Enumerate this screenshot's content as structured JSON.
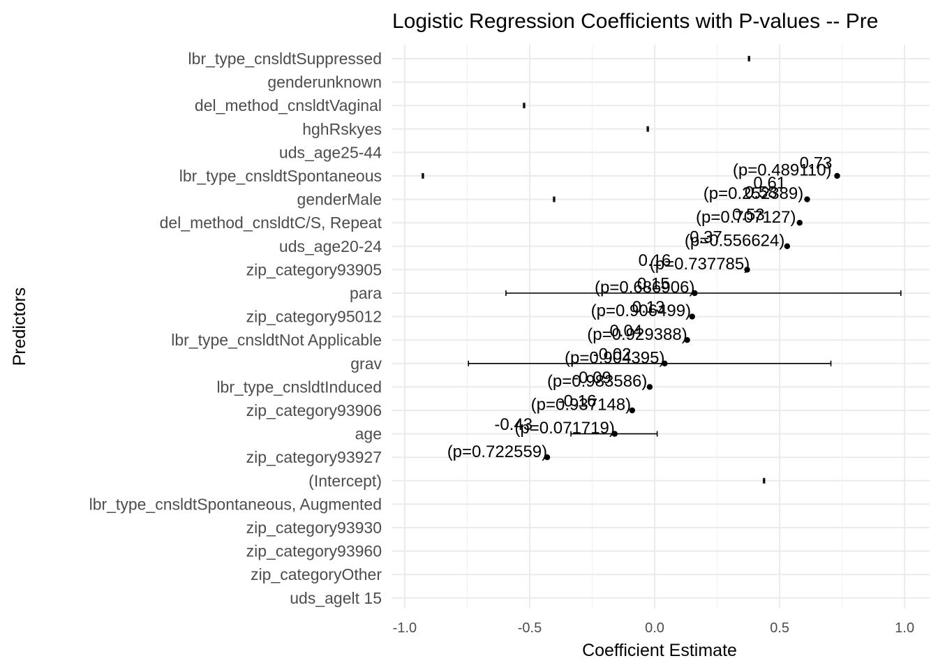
{
  "chart_data": {
    "type": "scatter",
    "title": "Logistic Regression Coefficients with P-values -- Pre",
    "xlabel": "Coefficient Estimate",
    "ylabel": "Predictors",
    "xlim": [
      -1.05,
      1.1
    ],
    "x_ticks": [
      -1.0,
      -0.5,
      0.0,
      0.5,
      1.0
    ],
    "x_tick_labels": [
      "-1.0",
      "-0.5",
      "0.0",
      "0.5",
      "1.0"
    ],
    "grid": true,
    "categories": [
      "lbr_type_cnsldtSuppressed",
      "genderunknown",
      "del_method_cnsldtVaginal",
      "hghRskyes",
      "uds_age25-44",
      "lbr_type_cnsldtSpontaneous",
      "genderMale",
      "del_method_cnsldtC/S, Repeat",
      "uds_age20-24",
      "zip_category93905",
      "para",
      "zip_category95012",
      "lbr_type_cnsldtNot Applicable",
      "grav",
      "lbr_type_cnsldtInduced",
      "zip_category93906",
      "age",
      "zip_category93927",
      "(Intercept)",
      "lbr_type_cnsldtSpontaneous, Augmented",
      "zip_category93930",
      "zip_category93960",
      "zip_categoryOther",
      "uds_agelt 15"
    ],
    "points": [
      {
        "row": 5,
        "x": 0.73
      },
      {
        "row": 6,
        "x": 0.61
      },
      {
        "row": 7,
        "x": 0.58
      },
      {
        "row": 8,
        "x": 0.53
      },
      {
        "row": 9,
        "x": 0.37
      },
      {
        "row": 10,
        "x": 0.16
      },
      {
        "row": 11,
        "x": 0.15
      },
      {
        "row": 12,
        "x": 0.13
      },
      {
        "row": 13,
        "x": 0.04
      },
      {
        "row": 14,
        "x": -0.02
      },
      {
        "row": 15,
        "x": -0.09
      },
      {
        "row": 16,
        "x": -0.16
      },
      {
        "row": 17,
        "x": -0.43
      }
    ],
    "error_bars": [
      {
        "row": 0,
        "lo": 0.375,
        "hi": 0.38
      },
      {
        "row": 2,
        "lo": -0.525,
        "hi": -0.52
      },
      {
        "row": 3,
        "lo": -0.03,
        "hi": -0.025
      },
      {
        "row": 5,
        "lo": -0.93,
        "hi": -0.925
      },
      {
        "row": 6,
        "lo": -0.405,
        "hi": -0.4
      },
      {
        "row": 10,
        "lo": -0.595,
        "hi": 0.985
      },
      {
        "row": 13,
        "lo": -0.745,
        "hi": 0.705
      },
      {
        "row": 16,
        "lo": -0.335,
        "hi": 0.01
      },
      {
        "row": 18,
        "lo": 0.435,
        "hi": 0.44
      }
    ],
    "annotations": [
      {
        "text": "0.73",
        "x": 0.645,
        "y": 4.45
      },
      {
        "text": "(p=0.489110)",
        "x": 0.51,
        "y": 4.75
      },
      {
        "text": "0.61",
        "x": 0.46,
        "y": 5.3
      },
      {
        "text": "(p=0.252389)",
        "x": 0.395,
        "y": 5.75
      },
      {
        "text": "0.58",
        "x": 0.425,
        "y": 5.7
      },
      {
        "text": "(p=0.707127)",
        "x": 0.365,
        "y": 6.75
      },
      {
        "text": "0.53",
        "x": 0.375,
        "y": 6.65
      },
      {
        "text": "(p=0.556624)",
        "x": 0.32,
        "y": 7.75
      },
      {
        "text": "0.37",
        "x": 0.205,
        "y": 7.6
      },
      {
        "text": "(p=0.737785)",
        "x": 0.18,
        "y": 8.75
      },
      {
        "text": "0.16",
        "x": 0.0,
        "y": 8.6
      },
      {
        "text": "(p=0.686906)",
        "x": -0.04,
        "y": 9.75
      },
      {
        "text": "0.15",
        "x": -0.005,
        "y": 9.6
      },
      {
        "text": "(p=0.906499)",
        "x": -0.055,
        "y": 10.75
      },
      {
        "text": "0.13",
        "x": -0.025,
        "y": 10.6
      },
      {
        "text": "(p=0.929388)",
        "x": -0.07,
        "y": 11.75
      },
      {
        "text": "0.04",
        "x": -0.115,
        "y": 11.6
      },
      {
        "text": "(p=0.904395)",
        "x": -0.16,
        "y": 12.75
      },
      {
        "text": "-0.02",
        "x": -0.17,
        "y": 12.6
      },
      {
        "text": "(p=0.983586)",
        "x": -0.23,
        "y": 13.75
      },
      {
        "text": "-0.09",
        "x": -0.25,
        "y": 13.6
      },
      {
        "text": "(p=0.937148)",
        "x": -0.295,
        "y": 14.75
      },
      {
        "text": "-0.16",
        "x": -0.31,
        "y": 14.6
      },
      {
        "text": "(p=0.071719)",
        "x": -0.36,
        "y": 15.75
      },
      {
        "text": "-0.43",
        "x": -0.565,
        "y": 15.6
      },
      {
        "text": "(p=0.722559)",
        "x": -0.63,
        "y": 16.75
      }
    ]
  }
}
